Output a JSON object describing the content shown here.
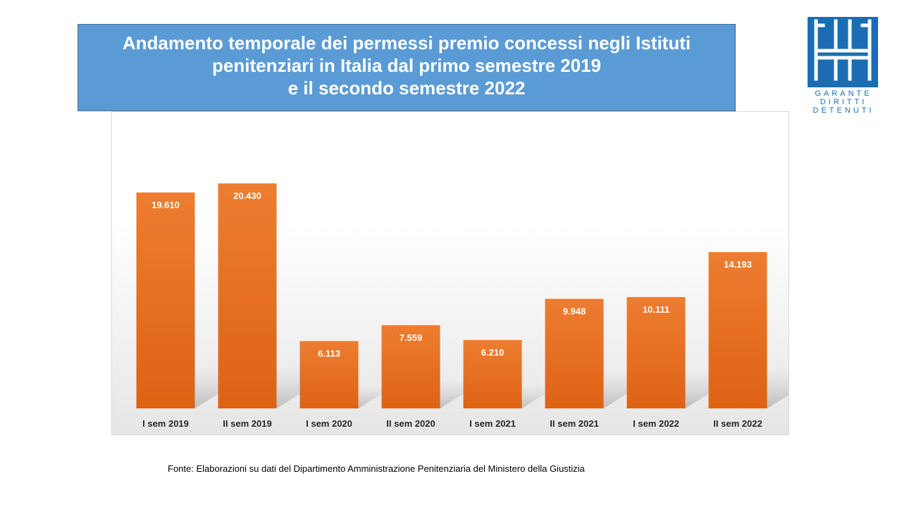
{
  "title": {
    "lines": [
      "Andamento temporale dei permessi premio concessi negli Istituti",
      "penitenziari in Italia dal primo semestre 2019",
      "e il secondo semestre 2022"
    ]
  },
  "logo": {
    "lines": [
      "GARANTE",
      "DIRITTI",
      "DETENUTI"
    ]
  },
  "footnote": "Fonte:  Elaborazioni su dati del Dipartimento  Amministrazione  Penitenziaria del Ministero della Giustizia",
  "colors": {
    "title_bg": "#5b9bd5",
    "bar_top": "#ed7d31",
    "bar_bottom": "#de6214",
    "logo": "#1a6db3"
  },
  "chart_data": {
    "type": "bar",
    "categories": [
      "I sem 2019",
      "II sem 2019",
      "I sem 2020",
      "II sem 2020",
      "I sem 2021",
      "II sem 2021",
      "I sem 2022",
      "II sem 2022"
    ],
    "values": [
      19610,
      20430,
      6113,
      7559,
      6210,
      9948,
      10111,
      14193
    ],
    "value_labels": [
      "19.610",
      "20.430",
      "6.113",
      "7.559",
      "6.210",
      "9.948",
      "10.111",
      "14.193"
    ],
    "ylim": [
      0,
      25000
    ],
    "grid": false,
    "legend": false
  }
}
